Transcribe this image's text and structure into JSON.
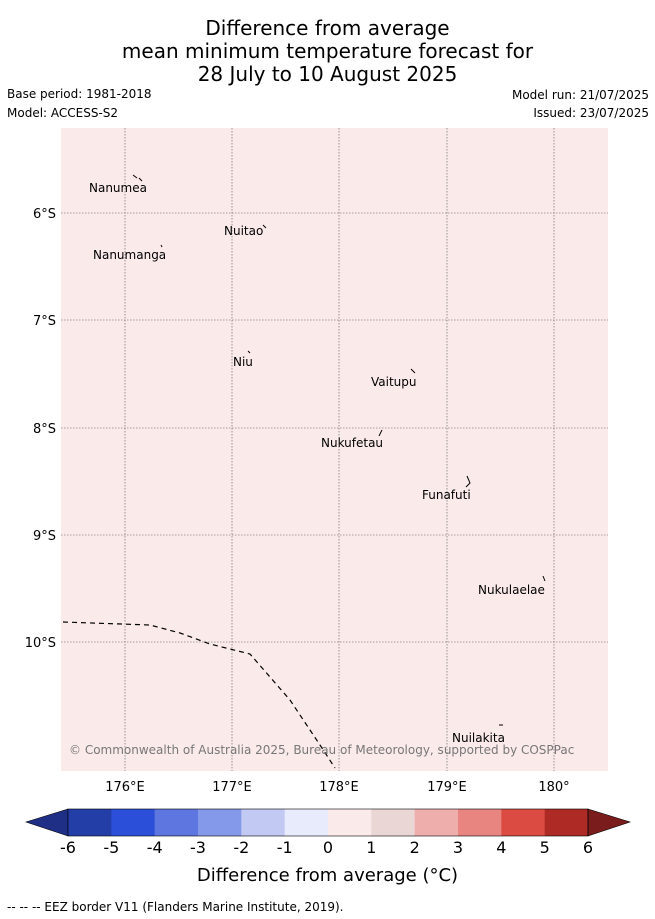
{
  "title": {
    "line1": "Difference from average",
    "line2": "mean minimum temperature forecast for",
    "line3": "28 July to 10 August 2025"
  },
  "meta": {
    "base_period": "Base period: 1981-2018",
    "model": "Model: ACCESS-S2",
    "model_run": "Model run: 21/07/2025",
    "issued": "Issued: 23/07/2025"
  },
  "map": {
    "fill_color": "#fbeaea",
    "lat_labels": [
      "6°S",
      "7°S",
      "8°S",
      "9°S",
      "10°S"
    ],
    "lon_labels": [
      "176°E",
      "177°E",
      "178°E",
      "179°E",
      "180°"
    ],
    "places": [
      {
        "name": "Nanumea"
      },
      {
        "name": "Nuitao"
      },
      {
        "name": "Nanumanga"
      },
      {
        "name": "Niu"
      },
      {
        "name": "Vaitupu"
      },
      {
        "name": "Nukufetau"
      },
      {
        "name": "Funafuti"
      },
      {
        "name": "Nukulaelae"
      },
      {
        "name": "Nuilakita"
      }
    ],
    "copyright": "© Commonwealth of Australia 2025, Bureau of Meteorology, supported by COSPPac"
  },
  "colorbar": {
    "ticks": [
      "-6",
      "-5",
      "-4",
      "-3",
      "-2",
      "-1",
      "0",
      "1",
      "2",
      "3",
      "4",
      "5",
      "6"
    ],
    "colors": [
      "#233ea6",
      "#2b4fd9",
      "#5e77e0",
      "#8599eb",
      "#c2c9f2",
      "#e8ebfb",
      "#fbeaea",
      "#ead6d5",
      "#eeaeab",
      "#e88580",
      "#dc4b41",
      "#ae2a25"
    ],
    "low_color": "#1f2f86",
    "high_color": "#7b1c1c",
    "label": "Difference from average (°C)"
  },
  "footer": "--  --  -- EEZ border V11 (Flanders Marine Institute, 2019)."
}
